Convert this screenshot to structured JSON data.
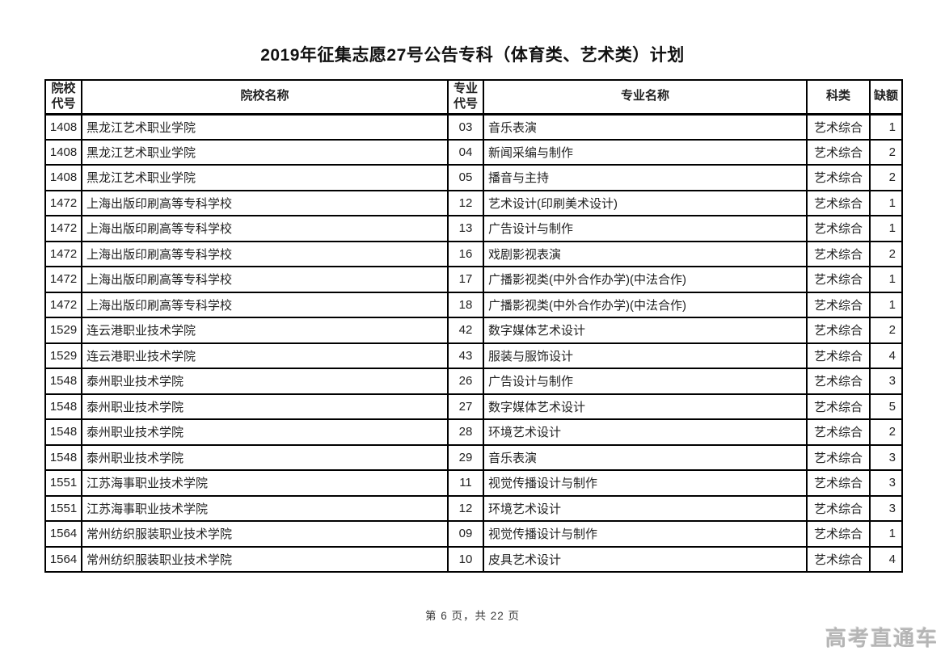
{
  "title": "2019年征集志愿27号公告专科（体育类、艺术类）计划",
  "table": {
    "columns": [
      {
        "key": "college_code",
        "label": "院校代号",
        "align": "center"
      },
      {
        "key": "college_name",
        "label": "院校名称",
        "align": "left"
      },
      {
        "key": "major_code",
        "label": "专业代号",
        "align": "center"
      },
      {
        "key": "major_name",
        "label": "专业名称",
        "align": "left"
      },
      {
        "key": "category",
        "label": "科类",
        "align": "center"
      },
      {
        "key": "vacancy",
        "label": "缺额",
        "align": "right"
      }
    ],
    "rows": [
      {
        "college_code": "1408",
        "college_name": "黑龙江艺术职业学院",
        "major_code": "03",
        "major_name": "音乐表演",
        "category": "艺术综合",
        "vacancy": "1"
      },
      {
        "college_code": "1408",
        "college_name": "黑龙江艺术职业学院",
        "major_code": "04",
        "major_name": "新闻采编与制作",
        "category": "艺术综合",
        "vacancy": "2"
      },
      {
        "college_code": "1408",
        "college_name": "黑龙江艺术职业学院",
        "major_code": "05",
        "major_name": "播音与主持",
        "category": "艺术综合",
        "vacancy": "2"
      },
      {
        "college_code": "1472",
        "college_name": "上海出版印刷高等专科学校",
        "major_code": "12",
        "major_name": "艺术设计(印刷美术设计)",
        "category": "艺术综合",
        "vacancy": "1"
      },
      {
        "college_code": "1472",
        "college_name": "上海出版印刷高等专科学校",
        "major_code": "13",
        "major_name": "广告设计与制作",
        "category": "艺术综合",
        "vacancy": "1"
      },
      {
        "college_code": "1472",
        "college_name": "上海出版印刷高等专科学校",
        "major_code": "16",
        "major_name": "戏剧影视表演",
        "category": "艺术综合",
        "vacancy": "2"
      },
      {
        "college_code": "1472",
        "college_name": "上海出版印刷高等专科学校",
        "major_code": "17",
        "major_name": "广播影视类(中外合作办学)(中法合作)",
        "category": "艺术综合",
        "vacancy": "1"
      },
      {
        "college_code": "1472",
        "college_name": "上海出版印刷高等专科学校",
        "major_code": "18",
        "major_name": "广播影视类(中外合作办学)(中法合作)",
        "category": "艺术综合",
        "vacancy": "1"
      },
      {
        "college_code": "1529",
        "college_name": "连云港职业技术学院",
        "major_code": "42",
        "major_name": "数字媒体艺术设计",
        "category": "艺术综合",
        "vacancy": "2"
      },
      {
        "college_code": "1529",
        "college_name": "连云港职业技术学院",
        "major_code": "43",
        "major_name": "服装与服饰设计",
        "category": "艺术综合",
        "vacancy": "4"
      },
      {
        "college_code": "1548",
        "college_name": "泰州职业技术学院",
        "major_code": "26",
        "major_name": "广告设计与制作",
        "category": "艺术综合",
        "vacancy": "3"
      },
      {
        "college_code": "1548",
        "college_name": "泰州职业技术学院",
        "major_code": "27",
        "major_name": "数字媒体艺术设计",
        "category": "艺术综合",
        "vacancy": "5"
      },
      {
        "college_code": "1548",
        "college_name": "泰州职业技术学院",
        "major_code": "28",
        "major_name": "环境艺术设计",
        "category": "艺术综合",
        "vacancy": "2"
      },
      {
        "college_code": "1548",
        "college_name": "泰州职业技术学院",
        "major_code": "29",
        "major_name": "音乐表演",
        "category": "艺术综合",
        "vacancy": "3"
      },
      {
        "college_code": "1551",
        "college_name": "江苏海事职业技术学院",
        "major_code": "11",
        "major_name": "视觉传播设计与制作",
        "category": "艺术综合",
        "vacancy": "3"
      },
      {
        "college_code": "1551",
        "college_name": "江苏海事职业技术学院",
        "major_code": "12",
        "major_name": "环境艺术设计",
        "category": "艺术综合",
        "vacancy": "3"
      },
      {
        "college_code": "1564",
        "college_name": "常州纺织服装职业技术学院",
        "major_code": "09",
        "major_name": "视觉传播设计与制作",
        "category": "艺术综合",
        "vacancy": "1"
      },
      {
        "college_code": "1564",
        "college_name": "常州纺织服装职业技术学院",
        "major_code": "10",
        "major_name": "皮具艺术设计",
        "category": "艺术综合",
        "vacancy": "4"
      }
    ]
  },
  "footer": {
    "page_text": "第 6 页，共 22 页"
  },
  "watermark": "高考直通车"
}
